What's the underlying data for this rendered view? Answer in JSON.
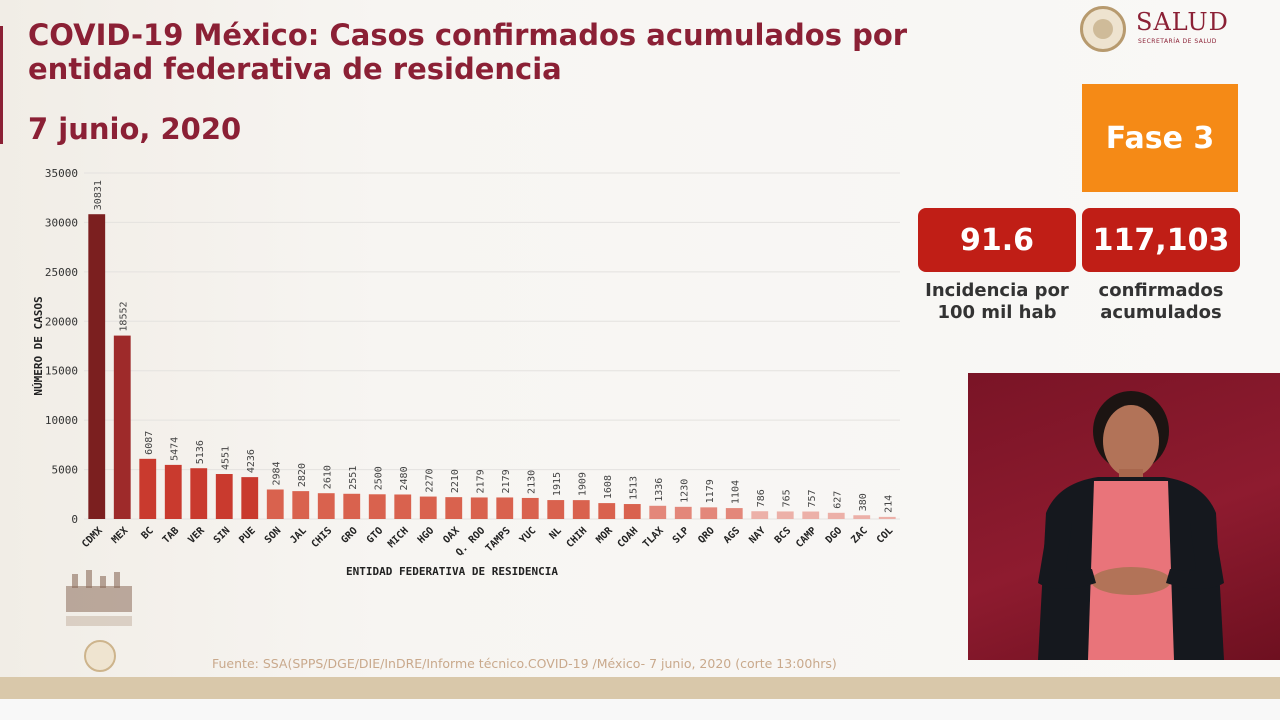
{
  "header": {
    "title": "COVID-19 México: Casos confirmados acumulados por entidad federativa de residencia",
    "date": "7 junio, 2020"
  },
  "logo": {
    "name": "SALUD",
    "subtitle": "SECRETARÍA DE SALUD"
  },
  "phase": {
    "label": "Fase 3",
    "color": "#f58a16"
  },
  "stats": {
    "incidence": {
      "value": "91.6",
      "label": "Incidencia por 100 mil hab"
    },
    "confirmed": {
      "value": "117,103",
      "label": "confirmados acumulados"
    }
  },
  "source": "Fuente: SSA(SPPS/DGE/DIE/InDRE/Informe técnico.COVID-19 /México- 7 junio, 2020 (corte 13:00hrs)",
  "chart_data": {
    "type": "bar",
    "xlabel": "ENTIDAD FEDERATIVA DE RESIDENCIA",
    "ylabel": "NÚMERO DE CASOS",
    "ylim": [
      0,
      35000
    ],
    "yticks": [
      0,
      5000,
      10000,
      15000,
      20000,
      25000,
      30000,
      35000
    ],
    "grid": true,
    "categories": [
      "CDMX",
      "MEX",
      "BC",
      "TAB",
      "VER",
      "SIN",
      "PUE",
      "SON",
      "JAL",
      "CHIS",
      "GRO",
      "GTO",
      "MICH",
      "HGO",
      "OAX",
      "Q. ROO",
      "TAMPS",
      "YUC",
      "NL",
      "CHIH",
      "MOR",
      "COAH",
      "TLAX",
      "SLP",
      "QRO",
      "AGS",
      "NAY",
      "BCS",
      "CAMP",
      "DGO",
      "ZAC",
      "COL"
    ],
    "values": [
      30831,
      18552,
      6087,
      5474,
      5136,
      4551,
      4236,
      2984,
      2820,
      2610,
      2551,
      2500,
      2480,
      2270,
      2210,
      2179,
      2179,
      2130,
      1915,
      1909,
      1608,
      1513,
      1336,
      1230,
      1179,
      1104,
      786,
      765,
      757,
      627,
      380,
      214
    ],
    "colors": {
      "top": "#7b1f1f",
      "high": "#9e2a2a",
      "mid": "#c93a2e",
      "midlow": "#d9624e",
      "low": "#e3877a",
      "lowest": "#ecb0a8"
    }
  }
}
